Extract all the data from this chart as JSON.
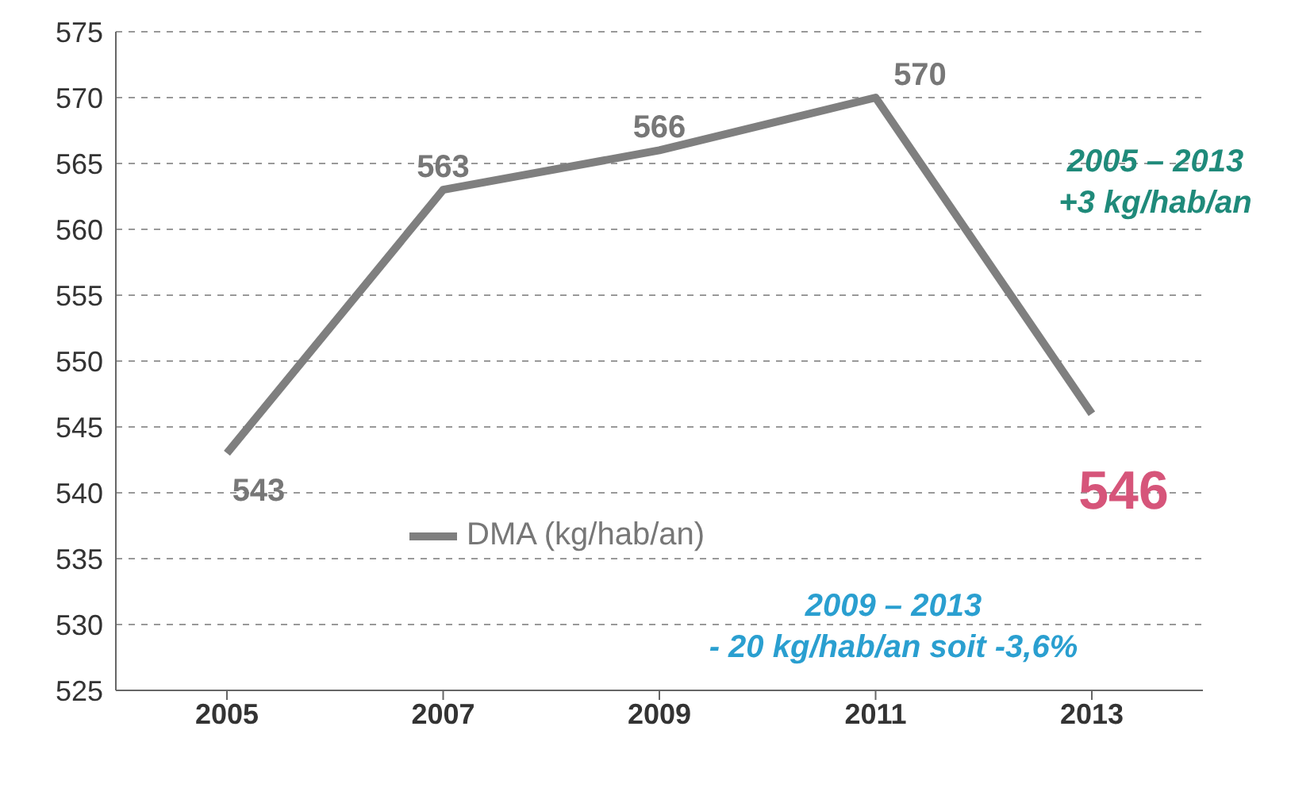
{
  "chart_data": {
    "type": "line",
    "categories": [
      "2005",
      "2007",
      "2009",
      "2011",
      "2013"
    ],
    "series": [
      {
        "name": "DMA (kg/hab/an)",
        "color": "#7f7f7f",
        "values": [
          543,
          563,
          566,
          570,
          546
        ]
      }
    ],
    "ylim": [
      525,
      575
    ],
    "yticks": [
      525,
      530,
      535,
      540,
      545,
      550,
      555,
      560,
      565,
      570,
      575
    ],
    "grid": "y",
    "line_style": "solid",
    "marker": "none",
    "data_labels": true,
    "legend": "bottom",
    "annotations": [
      "2005 – 2013\n+3 kg/hab/an",
      "2009 – 2013\n- 20 kg/hab/an soit -3,6%"
    ]
  }
}
